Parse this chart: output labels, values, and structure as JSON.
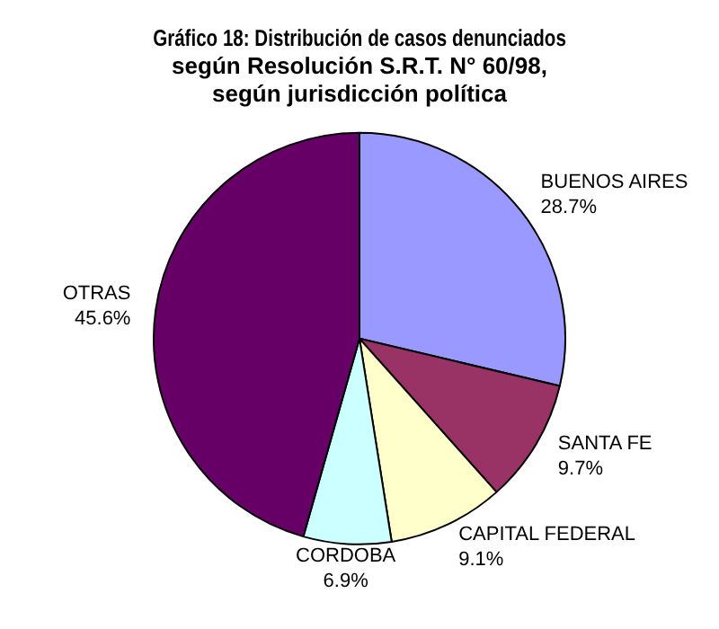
{
  "chart_data": {
    "type": "pie",
    "title": "Gráfico 18: Distribución de casos denunciados\nsegún Resolución S.R.T. N° 60/98,\nsegún jurisdicción política",
    "categories": [
      "BUENOS AIRES",
      "SANTA FE",
      "CAPITAL FEDERAL",
      "CORDOBA",
      "OTRAS"
    ],
    "values": [
      28.7,
      9.7,
      9.1,
      6.9,
      45.6
    ],
    "colors": [
      "#9999ff",
      "#993366",
      "#ffffcc",
      "#ccffff",
      "#660066"
    ],
    "value_labels": [
      "28.7%",
      "9.7%",
      "9.1%",
      "6.9%",
      "45.6%"
    ],
    "legend": false
  }
}
